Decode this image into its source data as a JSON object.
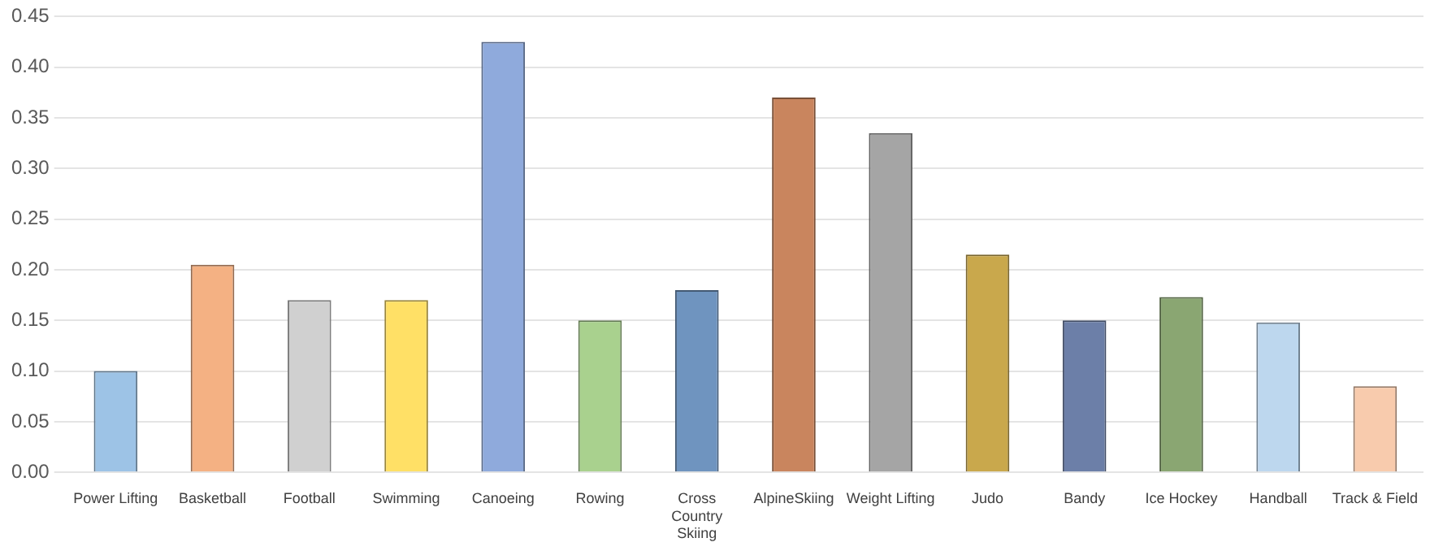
{
  "chart_data": {
    "type": "bar",
    "categories": [
      "Power Lifting",
      "Basketball",
      "Football",
      "Swimming",
      "Canoeing",
      "Rowing",
      "Cross Country Skiing",
      "AlpineSkiing",
      "Weight Lifting",
      "Judo",
      "Bandy",
      "Ice Hockey",
      "Handball",
      "Track & Field"
    ],
    "values": [
      0.1,
      0.205,
      0.17,
      0.17,
      0.425,
      0.15,
      0.18,
      0.37,
      0.335,
      0.215,
      0.15,
      0.173,
      0.148,
      0.085
    ],
    "colors": [
      "#9dc3e6",
      "#f4b183",
      "#d0d0d0",
      "#ffe066",
      "#8faadc",
      "#a9d18e",
      "#6f94bf",
      "#c9855e",
      "#a5a5a5",
      "#c9a84c",
      "#6c7fa8",
      "#8aa672",
      "#bdd7ee",
      "#f8cbad"
    ],
    "ylim": [
      0,
      0.45
    ],
    "yticks": [
      {
        "value": 0,
        "label": "0.00"
      },
      {
        "value": 0.05,
        "label": "0.05"
      },
      {
        "value": 0.1,
        "label": "0.10"
      },
      {
        "value": 0.15,
        "label": "0.15"
      },
      {
        "value": 0.2,
        "label": "0.20"
      },
      {
        "value": 0.25,
        "label": "0.25"
      },
      {
        "value": 0.3,
        "label": "0.30"
      },
      {
        "value": 0.35,
        "label": "0.35"
      },
      {
        "value": 0.4,
        "label": "0.40"
      },
      {
        "value": 0.45,
        "label": "0.45"
      }
    ],
    "grid": "y"
  }
}
